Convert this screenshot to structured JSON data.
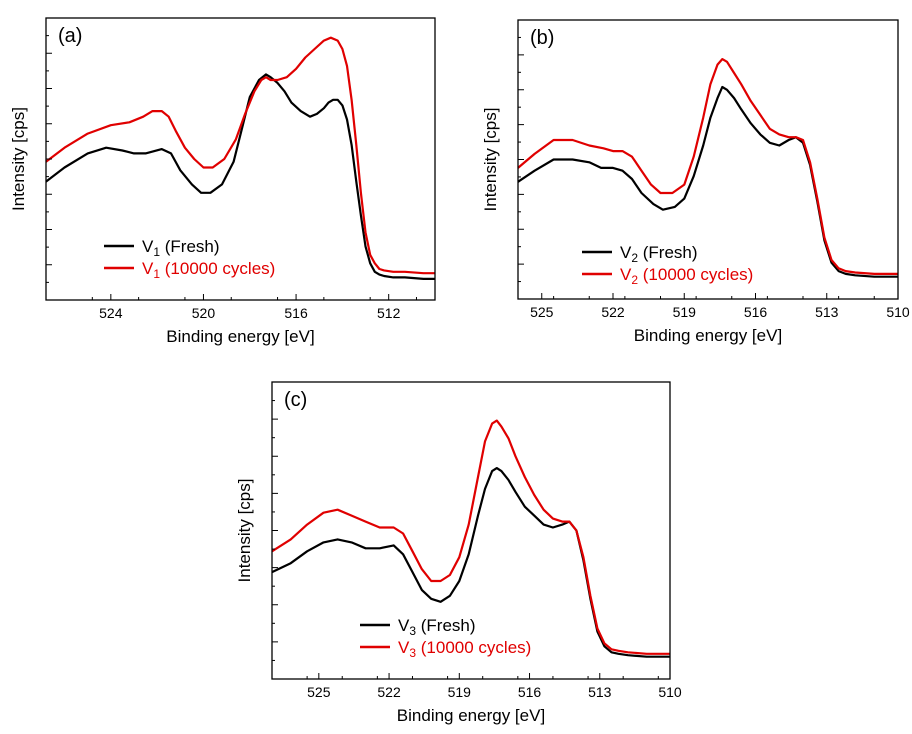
{
  "chart_data": [
    {
      "type": "line",
      "panel_label": "(a)",
      "xlabel": "Binding energy [eV]",
      "ylabel": "Intensity [cps]",
      "xlim": [
        526.8,
        510.0
      ],
      "x_reversed": true,
      "ylim": [
        0,
        1
      ],
      "y_tick_labels_shown": false,
      "x_ticks": [
        524,
        520,
        516,
        512
      ],
      "x_tick_labels": [
        "524",
        "520",
        "516",
        "512"
      ],
      "legend_position": "lower-left",
      "series": [
        {
          "name": "V1 (Fresh)",
          "label_main": "V",
          "label_sub": "1",
          "label_rest": " (Fresh)",
          "color": "#000000",
          "x": [
            526.8,
            526,
            525,
            524.2,
            523.5,
            523,
            522.5,
            521.8,
            521.4,
            521,
            520.5,
            520.1,
            519.7,
            519.2,
            518.7,
            518.3,
            518,
            517.6,
            517.3,
            517.1,
            516.8,
            516.5,
            516.2,
            515.8,
            515.4,
            515.1,
            514.8,
            514.6,
            514.4,
            514.2,
            514,
            513.8,
            513.6,
            513.4,
            513.2,
            513,
            512.8,
            512.6,
            512.4,
            512.2,
            511.8,
            511.3,
            510.5,
            510
          ],
          "values": [
            0.42,
            0.47,
            0.52,
            0.54,
            0.53,
            0.52,
            0.52,
            0.535,
            0.52,
            0.46,
            0.41,
            0.38,
            0.38,
            0.41,
            0.49,
            0.62,
            0.72,
            0.78,
            0.8,
            0.79,
            0.77,
            0.74,
            0.7,
            0.67,
            0.65,
            0.66,
            0.68,
            0.7,
            0.71,
            0.71,
            0.69,
            0.64,
            0.55,
            0.42,
            0.3,
            0.19,
            0.13,
            0.1,
            0.09,
            0.085,
            0.08,
            0.08,
            0.075,
            0.075
          ]
        },
        {
          "name": "V1 (10000 cycles)",
          "label_main": "V",
          "label_sub": "1",
          "label_rest": " (10000 cycles)",
          "color": "#e00000",
          "x": [
            526.8,
            526,
            525,
            524,
            523.2,
            522.6,
            522.2,
            521.8,
            521.5,
            521.2,
            520.8,
            520.4,
            520,
            519.6,
            519.1,
            518.6,
            518.2,
            517.8,
            517.5,
            517.3,
            517.1,
            516.8,
            516.4,
            516,
            515.6,
            515.2,
            514.8,
            514.5,
            514.2,
            514,
            513.8,
            513.6,
            513.4,
            513.2,
            513,
            512.8,
            512.6,
            512.4,
            512.2,
            511.8,
            511.3,
            510.5,
            510
          ],
          "values": [
            0.49,
            0.54,
            0.59,
            0.62,
            0.63,
            0.65,
            0.67,
            0.67,
            0.65,
            0.6,
            0.54,
            0.5,
            0.47,
            0.47,
            0.5,
            0.57,
            0.66,
            0.74,
            0.78,
            0.79,
            0.78,
            0.78,
            0.79,
            0.82,
            0.86,
            0.89,
            0.92,
            0.93,
            0.92,
            0.89,
            0.83,
            0.71,
            0.55,
            0.38,
            0.24,
            0.16,
            0.13,
            0.11,
            0.105,
            0.1,
            0.1,
            0.095,
            0.095
          ]
        }
      ]
    },
    {
      "type": "line",
      "panel_label": "(b)",
      "xlabel": "Binding energy [eV]",
      "ylabel": "Intensity [cps]",
      "xlim": [
        526.0,
        510.0
      ],
      "x_reversed": true,
      "ylim": [
        0,
        1
      ],
      "y_tick_labels_shown": false,
      "x_ticks": [
        525,
        522,
        519,
        516,
        513,
        510
      ],
      "x_tick_labels": [
        "525",
        "522",
        "519",
        "516",
        "513",
        "510"
      ],
      "legend_position": "lower-center",
      "series": [
        {
          "name": "V2 (Fresh)",
          "label_main": "V",
          "label_sub": "2",
          "label_rest": " (Fresh)",
          "color": "#000000",
          "x": [
            526,
            525.3,
            524.5,
            523.7,
            523,
            522.5,
            522,
            521.6,
            521.2,
            520.8,
            520.3,
            519.9,
            519.4,
            519,
            518.6,
            518.2,
            517.9,
            517.6,
            517.4,
            517.2,
            516.9,
            516.6,
            516.2,
            515.8,
            515.4,
            515,
            514.6,
            514.3,
            514,
            513.7,
            513.4,
            513.1,
            512.8,
            512.5,
            512.2,
            511.8,
            511,
            510
          ],
          "values": [
            0.42,
            0.46,
            0.5,
            0.5,
            0.49,
            0.47,
            0.47,
            0.46,
            0.43,
            0.38,
            0.34,
            0.32,
            0.33,
            0.36,
            0.44,
            0.55,
            0.65,
            0.72,
            0.76,
            0.75,
            0.72,
            0.68,
            0.63,
            0.59,
            0.56,
            0.55,
            0.57,
            0.58,
            0.56,
            0.48,
            0.35,
            0.21,
            0.13,
            0.1,
            0.09,
            0.085,
            0.08,
            0.08
          ]
        },
        {
          "name": "V2 (10000 cycles)",
          "label_main": "V",
          "label_sub": "2",
          "label_rest": " (10000 cycles)",
          "color": "#e00000",
          "x": [
            526,
            525.3,
            524.5,
            523.7,
            523,
            522.4,
            522,
            521.6,
            521.2,
            520.8,
            520.4,
            520,
            519.5,
            519,
            518.6,
            518.2,
            517.9,
            517.6,
            517.4,
            517.2,
            516.9,
            516.6,
            516.2,
            515.8,
            515.4,
            515,
            514.6,
            514.3,
            514,
            513.7,
            513.4,
            513.1,
            512.8,
            512.5,
            512.2,
            511.8,
            511,
            510
          ],
          "values": [
            0.47,
            0.52,
            0.57,
            0.57,
            0.55,
            0.54,
            0.53,
            0.53,
            0.51,
            0.46,
            0.41,
            0.38,
            0.38,
            0.41,
            0.51,
            0.65,
            0.77,
            0.84,
            0.86,
            0.85,
            0.81,
            0.77,
            0.71,
            0.66,
            0.61,
            0.59,
            0.58,
            0.58,
            0.57,
            0.49,
            0.36,
            0.22,
            0.14,
            0.11,
            0.1,
            0.095,
            0.09,
            0.09
          ]
        }
      ]
    },
    {
      "type": "line",
      "panel_label": "(c)",
      "xlabel": "Binding energy [eV]",
      "ylabel": "Intensity [cps]",
      "xlim": [
        527.0,
        510.0
      ],
      "x_reversed": true,
      "ylim": [
        0,
        1
      ],
      "y_tick_labels_shown": false,
      "x_ticks": [
        525,
        522,
        519,
        516,
        513,
        510
      ],
      "x_tick_labels": [
        "525",
        "522",
        "519",
        "516",
        "513",
        "510"
      ],
      "legend_position": "lower-center",
      "series": [
        {
          "name": "V3 (Fresh)",
          "label_main": "V",
          "label_sub": "3",
          "label_rest": " (Fresh)",
          "color": "#000000",
          "x": [
            527,
            526.2,
            525.5,
            524.8,
            524.2,
            523.6,
            523,
            522.4,
            521.8,
            521.4,
            521,
            520.6,
            520.2,
            519.8,
            519.4,
            519,
            518.6,
            518.2,
            517.9,
            517.6,
            517.4,
            517.2,
            516.9,
            516.6,
            516.2,
            515.8,
            515.4,
            515,
            514.6,
            514.3,
            514,
            513.7,
            513.4,
            513.1,
            512.8,
            512.5,
            512.2,
            511.8,
            511,
            510
          ],
          "values": [
            0.36,
            0.39,
            0.43,
            0.46,
            0.47,
            0.46,
            0.44,
            0.44,
            0.45,
            0.42,
            0.36,
            0.3,
            0.27,
            0.26,
            0.28,
            0.33,
            0.42,
            0.55,
            0.64,
            0.7,
            0.71,
            0.7,
            0.67,
            0.63,
            0.58,
            0.55,
            0.52,
            0.51,
            0.52,
            0.53,
            0.5,
            0.4,
            0.27,
            0.16,
            0.11,
            0.09,
            0.085,
            0.08,
            0.075,
            0.075
          ]
        },
        {
          "name": "V3 (10000 cycles)",
          "label_main": "V",
          "label_sub": "3",
          "label_rest": " (10000 cycles)",
          "color": "#e00000",
          "x": [
            527,
            526.2,
            525.5,
            524.8,
            524.2,
            523.6,
            523,
            522.4,
            521.8,
            521.4,
            521,
            520.6,
            520.2,
            519.8,
            519.4,
            519,
            518.6,
            518.2,
            517.9,
            517.6,
            517.4,
            517.2,
            516.9,
            516.6,
            516.2,
            515.8,
            515.4,
            515,
            514.6,
            514.3,
            514,
            513.7,
            513.4,
            513.1,
            512.8,
            512.5,
            512.2,
            511.8,
            511,
            510
          ],
          "values": [
            0.43,
            0.47,
            0.52,
            0.56,
            0.57,
            0.55,
            0.53,
            0.51,
            0.51,
            0.49,
            0.43,
            0.37,
            0.33,
            0.33,
            0.35,
            0.41,
            0.52,
            0.68,
            0.8,
            0.86,
            0.87,
            0.85,
            0.81,
            0.75,
            0.68,
            0.62,
            0.57,
            0.54,
            0.53,
            0.53,
            0.5,
            0.41,
            0.28,
            0.17,
            0.12,
            0.1,
            0.095,
            0.09,
            0.085,
            0.085
          ]
        }
      ]
    }
  ]
}
